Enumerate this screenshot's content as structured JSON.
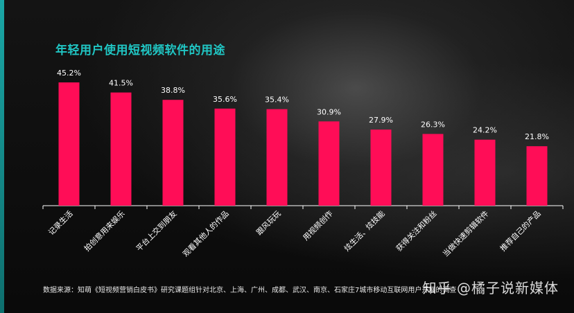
{
  "colors": {
    "bar": "#ff0d57",
    "title": "#20c6c4",
    "accent": "#1aa7a6",
    "axis": "#ffffff",
    "text": "#ffffff"
  },
  "source": "数据来源：知萌《短视频营销白皮书》研究课题组针对北京、上海、广州、成都、武汉、南京、石家庄7城市移动互联网用户开展的调查",
  "watermark": "知乎 @橘子说新媒体",
  "chart_data": {
    "type": "bar",
    "title": "年轻用户使用短视频软件的用途",
    "categories": [
      "记录生活",
      "拍创意用来娱乐",
      "平台上交到朋友",
      "观看其他人的作品",
      "跟风玩玩",
      "用视频创作",
      "炫生活、炫技能",
      "获得关注和粉丝",
      "当做快速剪辑软件",
      "推荐自己的产品"
    ],
    "values": [
      45.2,
      41.5,
      38.8,
      35.6,
      35.4,
      30.9,
      27.9,
      26.3,
      24.2,
      21.8
    ],
    "value_labels": [
      "45.2%",
      "41.5%",
      "38.8%",
      "35.6%",
      "35.4%",
      "30.9%",
      "27.9%",
      "26.3%",
      "24.2%",
      "21.8%"
    ],
    "xlabel": "",
    "ylabel": "",
    "ylim": [
      0,
      50
    ],
    "grid": false,
    "legend": "none"
  }
}
